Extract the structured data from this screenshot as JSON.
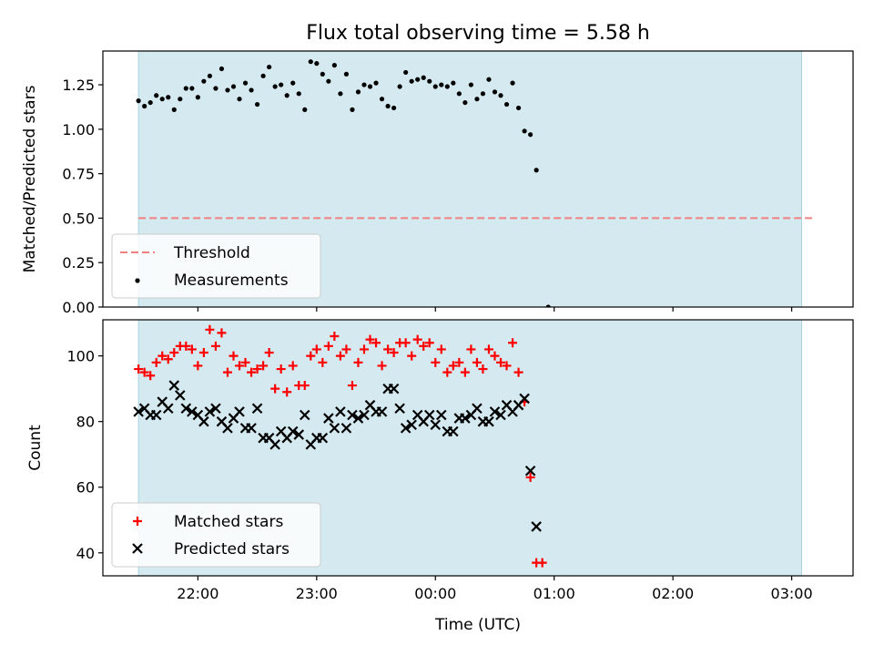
{
  "chart_data": {
    "title": "Flux total observing time = 5.58 h",
    "xlabel": "Time (UTC)",
    "x_axis": {
      "xlim": [
        "21:12",
        "03:31"
      ],
      "ticks": [
        "22:00",
        "23:00",
        "00:00",
        "01:00",
        "02:00",
        "03:00"
      ]
    },
    "observing_window": {
      "start": "21:30",
      "end": "03:05",
      "color": "#d4eaf0"
    },
    "panels": [
      {
        "type": "scatter",
        "ylabel": "Matched/Predicted stars",
        "ylim": [
          0,
          1.44
        ],
        "yticks": [
          "0.00",
          "0.25",
          "0.50",
          "0.75",
          "1.00",
          "1.25"
        ],
        "threshold": {
          "name": "Threshold",
          "value": 0.5,
          "x_range": [
            "21:30",
            "03:12"
          ],
          "color": "#f08080"
        },
        "series": [
          {
            "name": "Measurements",
            "marker": "dot",
            "color": "#000000",
            "points": [
              [
                "21:30",
                1.16
              ],
              [
                "21:33",
                1.13
              ],
              [
                "21:36",
                1.15
              ],
              [
                "21:39",
                1.19
              ],
              [
                "21:42",
                1.17
              ],
              [
                "21:45",
                1.18
              ],
              [
                "21:48",
                1.11
              ],
              [
                "21:51",
                1.17
              ],
              [
                "21:54",
                1.23
              ],
              [
                "21:57",
                1.23
              ],
              [
                "22:00",
                1.18
              ],
              [
                "22:03",
                1.27
              ],
              [
                "22:06",
                1.3
              ],
              [
                "22:09",
                1.23
              ],
              [
                "22:12",
                1.34
              ],
              [
                "22:15",
                1.22
              ],
              [
                "22:18",
                1.24
              ],
              [
                "22:21",
                1.17
              ],
              [
                "22:24",
                1.26
              ],
              [
                "22:27",
                1.22
              ],
              [
                "22:30",
                1.14
              ],
              [
                "22:33",
                1.3
              ],
              [
                "22:36",
                1.35
              ],
              [
                "22:39",
                1.24
              ],
              [
                "22:42",
                1.25
              ],
              [
                "22:45",
                1.19
              ],
              [
                "22:48",
                1.26
              ],
              [
                "22:51",
                1.2
              ],
              [
                "22:54",
                1.11
              ],
              [
                "22:57",
                1.38
              ],
              [
                "23:00",
                1.37
              ],
              [
                "23:03",
                1.31
              ],
              [
                "23:06",
                1.27
              ],
              [
                "23:09",
                1.36
              ],
              [
                "23:12",
                1.2
              ],
              [
                "23:15",
                1.31
              ],
              [
                "23:18",
                1.11
              ],
              [
                "23:21",
                1.21
              ],
              [
                "23:24",
                1.25
              ],
              [
                "23:27",
                1.24
              ],
              [
                "23:30",
                1.26
              ],
              [
                "23:33",
                1.17
              ],
              [
                "23:36",
                1.13
              ],
              [
                "23:39",
                1.12
              ],
              [
                "23:42",
                1.24
              ],
              [
                "23:45",
                1.32
              ],
              [
                "23:48",
                1.27
              ],
              [
                "23:51",
                1.28
              ],
              [
                "23:54",
                1.29
              ],
              [
                "23:57",
                1.27
              ],
              [
                "00:00",
                1.24
              ],
              [
                "00:03",
                1.25
              ],
              [
                "00:06",
                1.24
              ],
              [
                "00:09",
                1.26
              ],
              [
                "00:12",
                1.2
              ],
              [
                "00:15",
                1.15
              ],
              [
                "00:18",
                1.25
              ],
              [
                "00:21",
                1.17
              ],
              [
                "00:24",
                1.2
              ],
              [
                "00:27",
                1.28
              ],
              [
                "00:30",
                1.21
              ],
              [
                "00:33",
                1.19
              ],
              [
                "00:36",
                1.14
              ],
              [
                "00:39",
                1.26
              ],
              [
                "00:42",
                1.12
              ],
              [
                "00:45",
                0.99
              ],
              [
                "00:48",
                0.97
              ],
              [
                "00:51",
                0.77
              ],
              [
                "00:57",
                0.0
              ]
            ]
          }
        ]
      },
      {
        "type": "scatter",
        "ylabel": "Count",
        "ylim": [
          33,
          111
        ],
        "yticks": [
          "40",
          "60",
          "80",
          "100"
        ],
        "series": [
          {
            "name": "Matched stars",
            "marker": "plus",
            "color": "#ff0000",
            "points": [
              [
                "21:30",
                96
              ],
              [
                "21:33",
                95
              ],
              [
                "21:36",
                94
              ],
              [
                "21:39",
                98
              ],
              [
                "21:42",
                100
              ],
              [
                "21:45",
                99
              ],
              [
                "21:48",
                101
              ],
              [
                "21:51",
                103
              ],
              [
                "21:54",
                103
              ],
              [
                "21:57",
                102
              ],
              [
                "22:00",
                97
              ],
              [
                "22:03",
                101
              ],
              [
                "22:06",
                108
              ],
              [
                "22:09",
                103
              ],
              [
                "22:12",
                107
              ],
              [
                "22:15",
                95
              ],
              [
                "22:18",
                100
              ],
              [
                "22:21",
                97
              ],
              [
                "22:24",
                98
              ],
              [
                "22:27",
                95
              ],
              [
                "22:30",
                96
              ],
              [
                "22:33",
                97
              ],
              [
                "22:36",
                101
              ],
              [
                "22:39",
                90
              ],
              [
                "22:42",
                96
              ],
              [
                "22:45",
                89
              ],
              [
                "22:48",
                97
              ],
              [
                "22:51",
                91
              ],
              [
                "22:54",
                91
              ],
              [
                "22:57",
                100
              ],
              [
                "23:00",
                102
              ],
              [
                "23:03",
                98
              ],
              [
                "23:06",
                103
              ],
              [
                "23:09",
                106
              ],
              [
                "23:12",
                100
              ],
              [
                "23:15",
                102
              ],
              [
                "23:18",
                91
              ],
              [
                "23:21",
                98
              ],
              [
                "23:24",
                102
              ],
              [
                "23:27",
                105
              ],
              [
                "23:30",
                104
              ],
              [
                "23:33",
                97
              ],
              [
                "23:36",
                102
              ],
              [
                "23:39",
                101
              ],
              [
                "23:42",
                104
              ],
              [
                "23:45",
                104
              ],
              [
                "23:48",
                100
              ],
              [
                "23:51",
                105
              ],
              [
                "23:54",
                103
              ],
              [
                "23:57",
                104
              ],
              [
                "00:00",
                98
              ],
              [
                "00:03",
                102
              ],
              [
                "00:06",
                95
              ],
              [
                "00:09",
                97
              ],
              [
                "00:12",
                98
              ],
              [
                "00:15",
                95
              ],
              [
                "00:18",
                102
              ],
              [
                "00:21",
                98
              ],
              [
                "00:24",
                96
              ],
              [
                "00:27",
                102
              ],
              [
                "00:30",
                100
              ],
              [
                "00:33",
                98
              ],
              [
                "00:36",
                97
              ],
              [
                "00:39",
                104
              ],
              [
                "00:42",
                95
              ],
              [
                "00:45",
                86
              ],
              [
                "00:48",
                63
              ],
              [
                "00:51",
                37
              ],
              [
                "00:54",
                37
              ]
            ]
          },
          {
            "name": "Predicted stars",
            "marker": "x",
            "color": "#000000",
            "points": [
              [
                "21:30",
                83
              ],
              [
                "21:33",
                84
              ],
              [
                "21:36",
                82
              ],
              [
                "21:39",
                82
              ],
              [
                "21:42",
                86
              ],
              [
                "21:45",
                84
              ],
              [
                "21:48",
                91
              ],
              [
                "21:51",
                88
              ],
              [
                "21:54",
                84
              ],
              [
                "21:57",
                83
              ],
              [
                "22:00",
                82
              ],
              [
                "22:03",
                80
              ],
              [
                "22:06",
                83
              ],
              [
                "22:09",
                84
              ],
              [
                "22:12",
                80
              ],
              [
                "22:15",
                78
              ],
              [
                "22:18",
                81
              ],
              [
                "22:21",
                83
              ],
              [
                "22:24",
                78
              ],
              [
                "22:27",
                78
              ],
              [
                "22:30",
                84
              ],
              [
                "22:33",
                75
              ],
              [
                "22:36",
                75
              ],
              [
                "22:39",
                73
              ],
              [
                "22:42",
                77
              ],
              [
                "22:45",
                75
              ],
              [
                "22:48",
                77
              ],
              [
                "22:51",
                76
              ],
              [
                "22:54",
                82
              ],
              [
                "22:57",
                73
              ],
              [
                "23:00",
                75
              ],
              [
                "23:03",
                75
              ],
              [
                "23:06",
                81
              ],
              [
                "23:09",
                78
              ],
              [
                "23:12",
                83
              ],
              [
                "23:15",
                78
              ],
              [
                "23:18",
                82
              ],
              [
                "23:21",
                81
              ],
              [
                "23:24",
                82
              ],
              [
                "23:27",
                85
              ],
              [
                "23:30",
                83
              ],
              [
                "23:33",
                83
              ],
              [
                "23:36",
                90
              ],
              [
                "23:39",
                90
              ],
              [
                "23:42",
                84
              ],
              [
                "23:45",
                78
              ],
              [
                "23:48",
                79
              ],
              [
                "23:51",
                82
              ],
              [
                "23:54",
                80
              ],
              [
                "23:57",
                82
              ],
              [
                "00:00",
                79
              ],
              [
                "00:03",
                82
              ],
              [
                "00:06",
                77
              ],
              [
                "00:09",
                77
              ],
              [
                "00:12",
                81
              ],
              [
                "00:15",
                81
              ],
              [
                "00:18",
                82
              ],
              [
                "00:21",
                84
              ],
              [
                "00:24",
                80
              ],
              [
                "00:27",
                80
              ],
              [
                "00:30",
                83
              ],
              [
                "00:33",
                82
              ],
              [
                "00:36",
                85
              ],
              [
                "00:39",
                83
              ],
              [
                "00:42",
                85
              ],
              [
                "00:45",
                87
              ],
              [
                "00:48",
                65
              ],
              [
                "00:51",
                48
              ]
            ]
          }
        ]
      }
    ]
  }
}
